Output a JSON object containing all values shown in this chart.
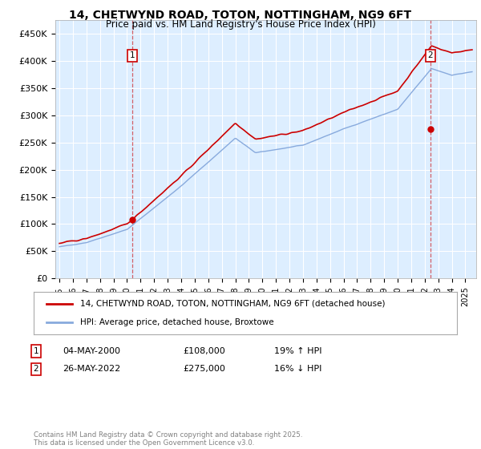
{
  "title": "14, CHETWYND ROAD, TOTON, NOTTINGHAM, NG9 6FT",
  "subtitle": "Price paid vs. HM Land Registry's House Price Index (HPI)",
  "ylabel_ticks": [
    "£0",
    "£50K",
    "£100K",
    "£150K",
    "£200K",
    "£250K",
    "£300K",
    "£350K",
    "£400K",
    "£450K"
  ],
  "ytick_values": [
    0,
    50000,
    100000,
    150000,
    200000,
    250000,
    300000,
    350000,
    400000,
    450000
  ],
  "ylim": [
    0,
    475000
  ],
  "xlim_start": 1994.7,
  "xlim_end": 2025.8,
  "background_color": "#ddeeff",
  "red_color": "#cc0000",
  "blue_color": "#88aadd",
  "legend_label_red": "14, CHETWYND ROAD, TOTON, NOTTINGHAM, NG9 6FT (detached house)",
  "legend_label_blue": "HPI: Average price, detached house, Broxtowe",
  "purchase1_date": "04-MAY-2000",
  "purchase1_price": 108000,
  "purchase1_pct": "19% ↑ HPI",
  "purchase2_date": "26-MAY-2022",
  "purchase2_price": 275000,
  "purchase2_pct": "16% ↓ HPI",
  "footer": "Contains HM Land Registry data © Crown copyright and database right 2025.\nThis data is licensed under the Open Government Licence v3.0.",
  "xticks": [
    1995,
    1996,
    1997,
    1998,
    1999,
    2000,
    2001,
    2002,
    2003,
    2004,
    2005,
    2006,
    2007,
    2008,
    2009,
    2010,
    2011,
    2012,
    2013,
    2014,
    2015,
    2016,
    2017,
    2018,
    2019,
    2020,
    2021,
    2022,
    2023,
    2024,
    2025
  ]
}
